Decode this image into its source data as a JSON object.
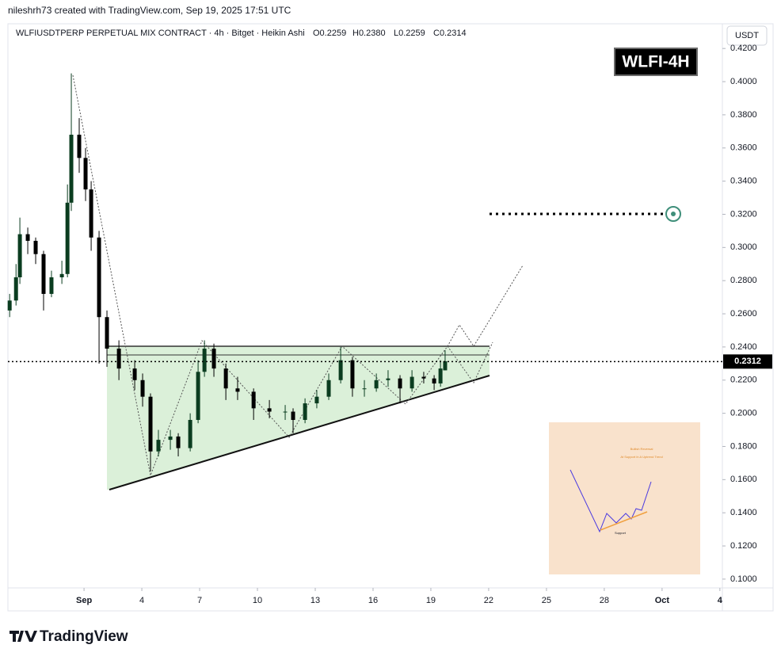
{
  "chart_data": {
    "type": "candlestick",
    "credit": "nileshrh73 created with TradingView.com, Sep 19, 2025 17:51 UTC",
    "title": "WLFIUSDTPERP PERPETUAL MIX CONTRACT · 4h · Bitget · Heikin Ashi",
    "ohlc": [
      "O0.2259",
      "H0.2380",
      "L0.2259",
      "C0.2314"
    ],
    "badge": "WLFI-4H",
    "currency": "USDT",
    "brand": "TradingView",
    "inset": {
      "title": "Bullish Reversal",
      "subtitle": "At Support In A Uptrend Trend",
      "label": "Support"
    },
    "up_color": "#0b3d20",
    "down_color": "#000000",
    "grid": false,
    "xlim": [
      -2.95,
      34.13
    ],
    "xticks": [
      {
        "value": 1,
        "label": "Sep"
      },
      4,
      7,
      10,
      13,
      16,
      19,
      22,
      25,
      28,
      {
        "value": 31,
        "label": "Oct"
      },
      {
        "value": 34,
        "label": "4"
      }
    ],
    "ylim": [
      0.0947,
      0.4349
    ],
    "yticks": [
      {
        "value": 0.1,
        "label": "0.1000"
      },
      {
        "value": 0.12,
        "label": "0.1200"
      },
      {
        "value": 0.14,
        "label": "0.1400"
      },
      {
        "value": 0.16,
        "label": "0.1600"
      },
      {
        "value": 0.18,
        "label": "0.1800"
      },
      {
        "value": 0.2,
        "label": "0.2000"
      },
      {
        "value": 0.22,
        "label": "0.2200"
      },
      {
        "value": 0.24,
        "label": "0.2400"
      },
      {
        "value": 0.26,
        "label": "0.2600"
      },
      {
        "value": 0.28,
        "label": "0.2800"
      },
      {
        "value": 0.3,
        "label": "0.3000"
      },
      {
        "value": 0.32,
        "label": "0.3200"
      },
      {
        "value": 0.34,
        "label": "0.3400"
      },
      {
        "value": 0.36,
        "label": "0.3600"
      },
      {
        "value": 0.38,
        "label": "0.3800"
      },
      {
        "value": 0.4,
        "label": "0.4000"
      },
      {
        "value": 0.42,
        "label": "0.4200"
      }
    ],
    "current_price": 0.2312,
    "candles": {
      "x": [
        -2.86,
        -2.53,
        -2.33,
        -1.92,
        -1.51,
        -1.1,
        -0.69,
        -0.15,
        0.14,
        0.34,
        0.75,
        1.08,
        1.37,
        1.78,
        2.19,
        2.81,
        3.63,
        4.04,
        4.45,
        4.86,
        5.48,
        5.89,
        6.51,
        6.92,
        7.25,
        7.74,
        8.36,
        8.97,
        9.8,
        10.62,
        11.44,
        11.85,
        12.47,
        13.08,
        13.7,
        14.32,
        14.93,
        15.55,
        16.17,
        16.78,
        17.4,
        18.02,
        18.63,
        19.17,
        19.5,
        19.74
      ],
      "open": [
        0.262,
        0.268,
        0.282,
        0.308,
        0.304,
        0.296,
        0.272,
        0.282,
        0.284,
        0.327,
        0.368,
        0.354,
        0.335,
        0.306,
        0.258,
        0.239,
        0.227,
        0.22,
        0.21,
        0.177,
        0.184,
        0.186,
        0.179,
        0.196,
        0.225,
        0.239,
        0.227,
        0.215,
        0.213,
        0.203,
        0.201,
        0.201,
        0.196,
        0.206,
        0.21,
        0.22,
        0.232,
        0.215,
        0.215,
        0.22,
        0.221,
        0.215,
        0.222,
        0.221,
        0.218,
        0.2259
      ],
      "high": [
        0.272,
        0.29,
        0.318,
        0.312,
        0.306,
        0.298,
        0.286,
        0.292,
        0.338,
        0.405,
        0.378,
        0.36,
        0.34,
        0.31,
        0.262,
        0.244,
        0.232,
        0.224,
        0.212,
        0.19,
        0.19,
        0.188,
        0.2,
        0.232,
        0.244,
        0.242,
        0.23,
        0.222,
        0.215,
        0.208,
        0.205,
        0.203,
        0.209,
        0.214,
        0.224,
        0.24,
        0.234,
        0.22,
        0.224,
        0.226,
        0.223,
        0.226,
        0.225,
        0.223,
        0.232,
        0.238
      ],
      "low": [
        0.258,
        0.265,
        0.278,
        0.296,
        0.29,
        0.262,
        0.27,
        0.278,
        0.282,
        0.322,
        0.345,
        0.328,
        0.298,
        0.23,
        0.228,
        0.22,
        0.214,
        0.204,
        0.165,
        0.174,
        0.178,
        0.174,
        0.177,
        0.194,
        0.222,
        0.222,
        0.208,
        0.208,
        0.196,
        0.197,
        0.196,
        0.188,
        0.194,
        0.203,
        0.208,
        0.218,
        0.21,
        0.21,
        0.213,
        0.216,
        0.206,
        0.213,
        0.218,
        0.214,
        0.216,
        0.2259
      ],
      "close": [
        0.268,
        0.282,
        0.308,
        0.304,
        0.296,
        0.272,
        0.282,
        0.284,
        0.327,
        0.368,
        0.354,
        0.335,
        0.306,
        0.258,
        0.239,
        0.227,
        0.22,
        0.21,
        0.177,
        0.184,
        0.186,
        0.179,
        0.196,
        0.225,
        0.239,
        0.227,
        0.215,
        0.213,
        0.203,
        0.201,
        0.201,
        0.196,
        0.206,
        0.21,
        0.22,
        0.232,
        0.215,
        0.215,
        0.22,
        0.221,
        0.215,
        0.222,
        0.221,
        0.218,
        0.227,
        0.2314
      ]
    }
  }
}
